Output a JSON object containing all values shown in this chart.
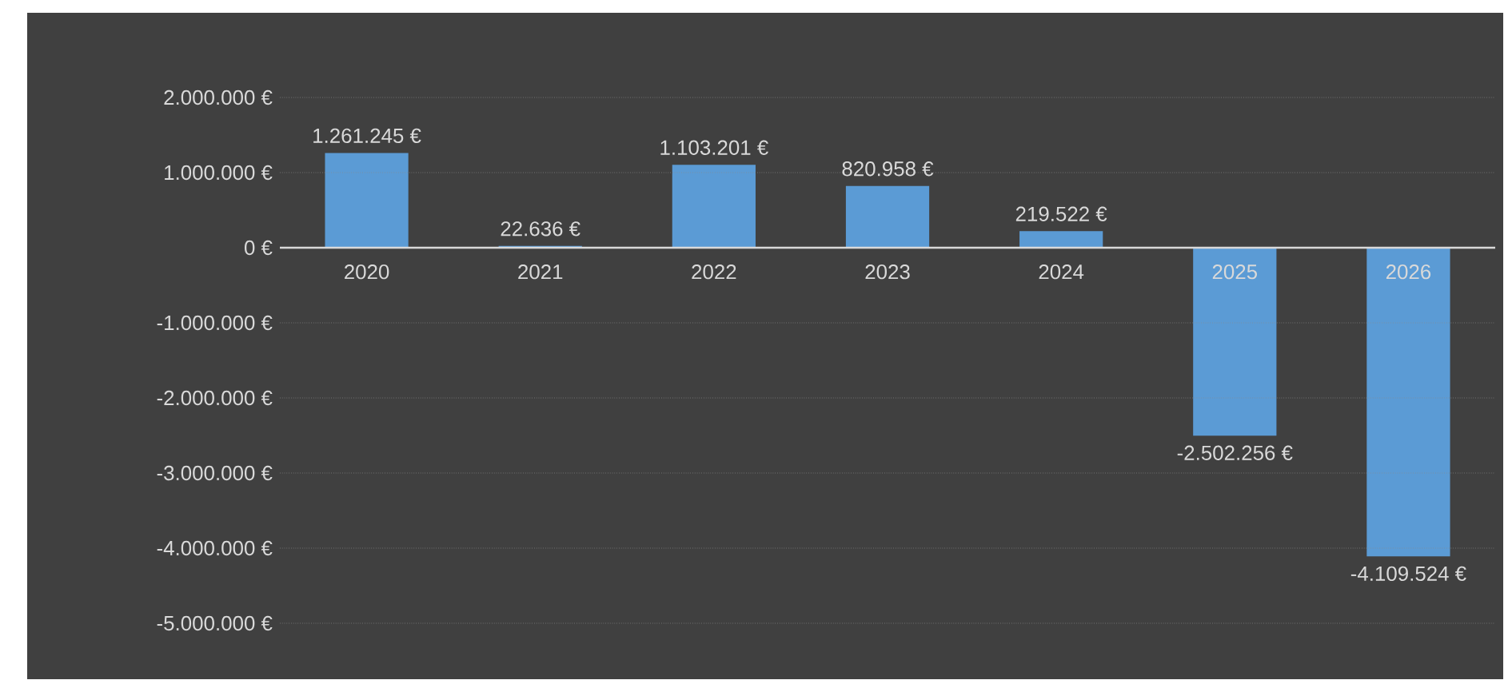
{
  "chart_data": {
    "type": "bar",
    "categories": [
      "2020",
      "2021",
      "2022",
      "2023",
      "2024",
      "2025",
      "2026"
    ],
    "values": [
      1261245,
      22636,
      1103201,
      820958,
      219522,
      -2502256,
      -4109524
    ],
    "value_labels": [
      "1.261.245 €",
      "22.636 €",
      "1.103.201 €",
      "820.958 €",
      "219.522 €",
      "-2.502.256 €",
      "-4.109.524 €"
    ],
    "color": "#5b9bd5",
    "ylim": [
      -5000000,
      2000000
    ],
    "yticks": [
      {
        "value": -5000000,
        "label": "-5.000.000 €"
      },
      {
        "value": -4000000,
        "label": "-4.000.000 €"
      },
      {
        "value": -3000000,
        "label": "-3.000.000 €"
      },
      {
        "value": -2000000,
        "label": "-2.000.000 €"
      },
      {
        "value": -1000000,
        "label": "-1.000.000 €"
      },
      {
        "value": 0,
        "label": "0 €"
      },
      {
        "value": 1000000,
        "label": "1.000.000 €"
      },
      {
        "value": 2000000,
        "label": "2.000.000 €"
      }
    ],
    "grid": true
  }
}
